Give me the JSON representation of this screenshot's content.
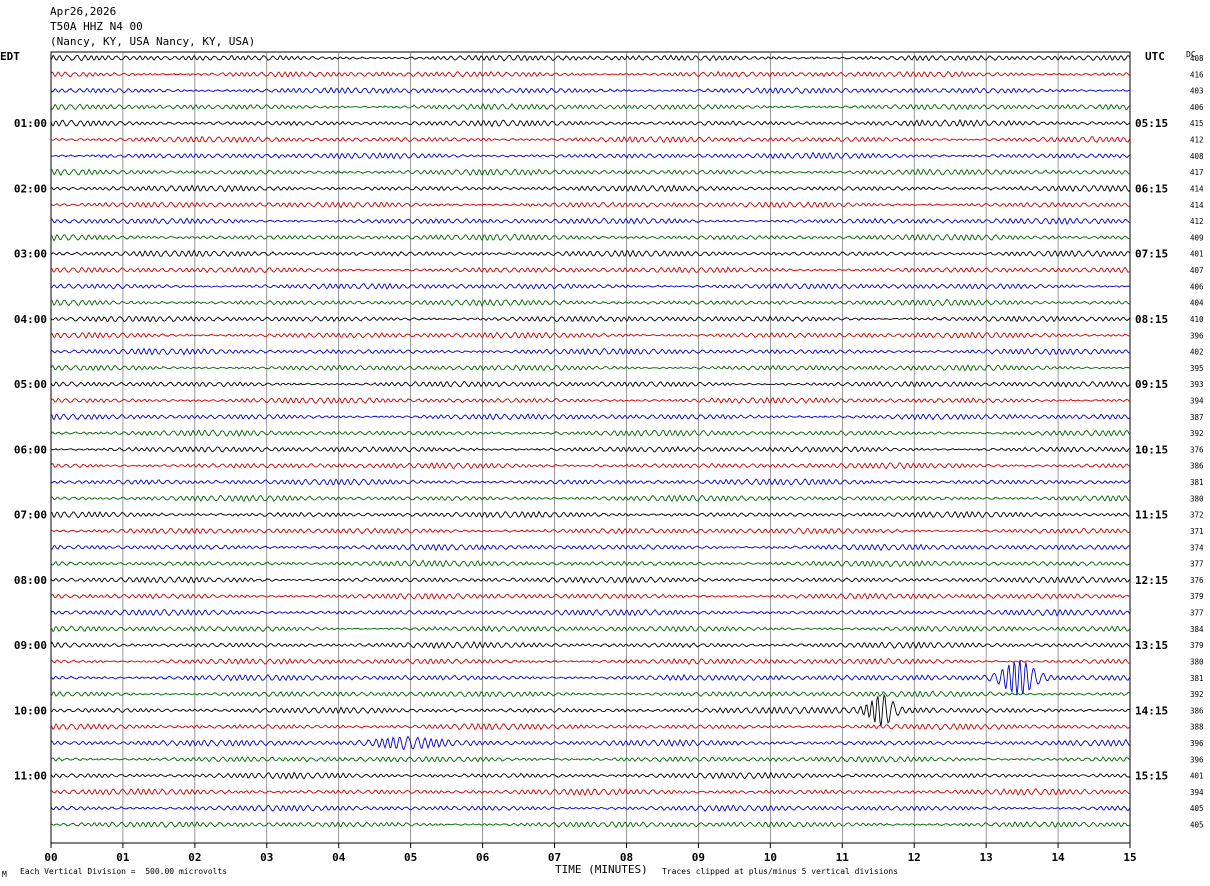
{
  "header": {
    "date": "Apr26,2026",
    "station": "T50A HHZ N4 00",
    "location": "(Nancy, KY, USA Nancy, KY, USA)"
  },
  "left_tz": "EDT",
  "right_tz": "UTC",
  "dc_label": "DC",
  "footer": {
    "scale_note": "Each Vertical Division =  500.00 microvolts",
    "xlabel": "TIME (MINUTES)",
    "clip_note": "Traces clipped at plus/minus 5 vertical divisions",
    "corner_mark": "M"
  },
  "chart_data": {
    "type": "line",
    "xlabel": "TIME (MINUTES)",
    "xlim": [
      0,
      15
    ],
    "x_ticks": [
      "00",
      "01",
      "02",
      "03",
      "04",
      "05",
      "06",
      "07",
      "08",
      "09",
      "10",
      "11",
      "12",
      "13",
      "14",
      "15"
    ],
    "trace_colors": [
      "#000000",
      "#cc0000",
      "#0000cc",
      "#006600"
    ],
    "rows_per_hour": 4,
    "left_time_labels": [
      "01:00",
      "02:00",
      "03:00",
      "04:00",
      "05:00",
      "06:00",
      "07:00",
      "08:00",
      "09:00",
      "10:00",
      "11:00"
    ],
    "right_time_labels": [
      "05:15",
      "06:15",
      "07:15",
      "08:15",
      "09:15",
      "10:15",
      "11:15",
      "12:15",
      "13:15",
      "14:15",
      "15:15"
    ],
    "dc_offsets": [
      408,
      416,
      403,
      406,
      415,
      412,
      408,
      417,
      414,
      414,
      412,
      409,
      401,
      407,
      406,
      404,
      410,
      396,
      402,
      395,
      393,
      394,
      387,
      392,
      376,
      386,
      381,
      380,
      372,
      371,
      374,
      377,
      376,
      379,
      377,
      384,
      379,
      380,
      381,
      392,
      386,
      388,
      396,
      396,
      401,
      394,
      405,
      405
    ],
    "events": [
      {
        "row": 38,
        "minute": 13.45,
        "label": "large burst (blue trace)"
      },
      {
        "row": 40,
        "minute": 11.55,
        "label": "burst (black trace)"
      },
      {
        "row": 42,
        "minute": 4.9,
        "label": "small burst (blue trace)"
      }
    ]
  }
}
